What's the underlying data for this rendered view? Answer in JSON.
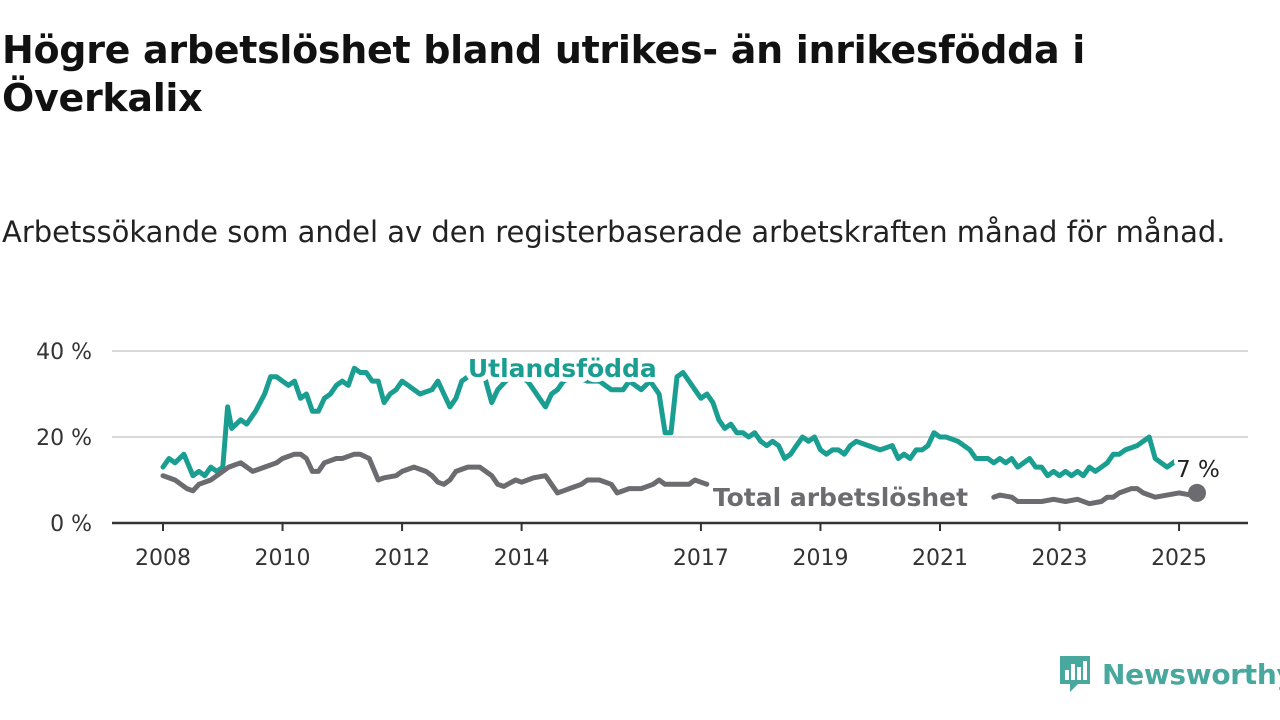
{
  "title": "Högre arbetslöshet bland utrikes- än inrikesfödda i Överkalix",
  "subtitle": "Arbetssökande som andel av den registerbaserade arbetskraften månad för månad.",
  "brand": {
    "name": "Newsworthy",
    "color": "#48a89e"
  },
  "chart_data": {
    "type": "line",
    "xlim": [
      2008,
      2025.9
    ],
    "ylim": [
      0,
      40
    ],
    "x_ticks": [
      {
        "value": 2008,
        "label": "2008"
      },
      {
        "value": 2010,
        "label": "2010"
      },
      {
        "value": 2012,
        "label": "2012"
      },
      {
        "value": 2014,
        "label": "2014"
      },
      {
        "value": 2017,
        "label": "2017"
      },
      {
        "value": 2019,
        "label": "2019"
      },
      {
        "value": 2021,
        "label": "2021"
      },
      {
        "value": 2023,
        "label": "2023"
      },
      {
        "value": 2025,
        "label": "2025"
      }
    ],
    "y_ticks": [
      {
        "value": 0,
        "label": "0 %"
      },
      {
        "value": 20,
        "label": "20 %"
      },
      {
        "value": 40,
        "label": "40 %"
      }
    ],
    "grid": true,
    "end_label": "7 %",
    "series": [
      {
        "name": "Utlandsfödda",
        "color": "#1a9e92",
        "points": [
          [
            2008.0,
            13
          ],
          [
            2008.1,
            15
          ],
          [
            2008.2,
            14
          ],
          [
            2008.35,
            16
          ],
          [
            2008.5,
            11
          ],
          [
            2008.6,
            12
          ],
          [
            2008.7,
            11
          ],
          [
            2008.8,
            13
          ],
          [
            2008.9,
            12
          ],
          [
            2009.0,
            13
          ],
          [
            2009.08,
            27
          ],
          [
            2009.15,
            22
          ],
          [
            2009.3,
            24
          ],
          [
            2009.4,
            23
          ],
          [
            2009.55,
            26
          ],
          [
            2009.7,
            30
          ],
          [
            2009.8,
            34
          ],
          [
            2009.9,
            34
          ],
          [
            2010.0,
            33
          ],
          [
            2010.1,
            32
          ],
          [
            2010.2,
            33
          ],
          [
            2010.3,
            29
          ],
          [
            2010.4,
            30
          ],
          [
            2010.5,
            26
          ],
          [
            2010.6,
            26
          ],
          [
            2010.7,
            29
          ],
          [
            2010.8,
            30
          ],
          [
            2010.9,
            32
          ],
          [
            2011.0,
            33
          ],
          [
            2011.1,
            32
          ],
          [
            2011.2,
            36
          ],
          [
            2011.3,
            35
          ],
          [
            2011.4,
            35
          ],
          [
            2011.5,
            33
          ],
          [
            2011.6,
            33
          ],
          [
            2011.7,
            28
          ],
          [
            2011.8,
            30
          ],
          [
            2011.9,
            31
          ],
          [
            2012.0,
            33
          ],
          [
            2012.1,
            32
          ],
          [
            2012.2,
            31
          ],
          [
            2012.3,
            30
          ],
          [
            2012.5,
            31
          ],
          [
            2012.6,
            33
          ],
          [
            2012.7,
            30
          ],
          [
            2012.8,
            27
          ],
          [
            2012.9,
            29
          ],
          [
            2013.0,
            33
          ],
          [
            2013.1,
            34
          ],
          [
            2013.3,
            36
          ],
          [
            2013.4,
            33
          ],
          [
            2013.5,
            28
          ],
          [
            2013.6,
            31
          ],
          [
            2013.8,
            34
          ],
          [
            2013.95,
            34
          ],
          [
            2014.1,
            33
          ],
          [
            2014.2,
            31
          ],
          [
            2014.3,
            29
          ],
          [
            2014.4,
            27
          ],
          [
            2014.5,
            30
          ],
          [
            2014.6,
            31
          ],
          [
            2014.7,
            33
          ],
          [
            2014.9,
            34
          ],
          [
            2015.1,
            33
          ],
          [
            2015.3,
            33
          ],
          [
            2015.5,
            31
          ],
          [
            2015.7,
            31
          ],
          [
            2015.8,
            33
          ],
          [
            2015.9,
            32
          ],
          [
            2016.0,
            31
          ],
          [
            2016.15,
            33
          ],
          [
            2016.3,
            30
          ],
          [
            2016.4,
            21
          ],
          [
            2016.5,
            21
          ],
          [
            2016.6,
            34
          ],
          [
            2016.7,
            35
          ],
          [
            2016.8,
            33
          ],
          [
            2016.9,
            31
          ],
          [
            2017.0,
            29
          ],
          [
            2017.1,
            30
          ],
          [
            2017.2,
            28
          ],
          [
            2017.3,
            24
          ],
          [
            2017.4,
            22
          ],
          [
            2017.5,
            23
          ],
          [
            2017.6,
            21
          ],
          [
            2017.7,
            21
          ],
          [
            2017.8,
            20
          ],
          [
            2017.9,
            21
          ],
          [
            2018.0,
            19
          ],
          [
            2018.1,
            18
          ],
          [
            2018.2,
            19
          ],
          [
            2018.3,
            18
          ],
          [
            2018.4,
            15
          ],
          [
            2018.5,
            16
          ],
          [
            2018.6,
            18
          ],
          [
            2018.7,
            20
          ],
          [
            2018.8,
            19
          ],
          [
            2018.9,
            20
          ],
          [
            2019.0,
            17
          ],
          [
            2019.1,
            16
          ],
          [
            2019.2,
            17
          ],
          [
            2019.3,
            17
          ],
          [
            2019.4,
            16
          ],
          [
            2019.5,
            18
          ],
          [
            2019.6,
            19
          ],
          [
            2019.8,
            18
          ],
          [
            2020.0,
            17
          ],
          [
            2020.2,
            18
          ],
          [
            2020.3,
            15
          ],
          [
            2020.4,
            16
          ],
          [
            2020.5,
            15
          ],
          [
            2020.6,
            17
          ],
          [
            2020.7,
            17
          ],
          [
            2020.8,
            18
          ],
          [
            2020.9,
            21
          ],
          [
            2021.0,
            20
          ],
          [
            2021.1,
            20
          ],
          [
            2021.3,
            19
          ],
          [
            2021.5,
            17
          ],
          [
            2021.6,
            15
          ],
          [
            2021.8,
            15
          ],
          [
            2021.9,
            14
          ],
          [
            2022.0,
            15
          ],
          [
            2022.1,
            14
          ],
          [
            2022.2,
            15
          ],
          [
            2022.3,
            13
          ],
          [
            2022.4,
            14
          ],
          [
            2022.5,
            15
          ],
          [
            2022.6,
            13
          ],
          [
            2022.7,
            13
          ],
          [
            2022.8,
            11
          ],
          [
            2022.9,
            12
          ],
          [
            2023.0,
            11
          ],
          [
            2023.1,
            12
          ],
          [
            2023.2,
            11
          ],
          [
            2023.3,
            12
          ],
          [
            2023.4,
            11
          ],
          [
            2023.5,
            13
          ],
          [
            2023.6,
            12
          ],
          [
            2023.7,
            13
          ],
          [
            2023.8,
            14
          ],
          [
            2023.9,
            16
          ],
          [
            2024.0,
            16
          ],
          [
            2024.1,
            17
          ],
          [
            2024.3,
            18
          ],
          [
            2024.4,
            19
          ],
          [
            2024.5,
            20
          ],
          [
            2024.6,
            15
          ],
          [
            2024.7,
            14
          ],
          [
            2024.8,
            13
          ],
          [
            2024.9,
            14
          ],
          [
            2025.0,
            15
          ]
        ]
      },
      {
        "name": "Total arbetslöshet",
        "color": "#6b6b70",
        "points": [
          [
            2008.0,
            11
          ],
          [
            2008.2,
            10
          ],
          [
            2008.4,
            8
          ],
          [
            2008.5,
            7.5
          ],
          [
            2008.6,
            9
          ],
          [
            2008.8,
            10
          ],
          [
            2009.0,
            12
          ],
          [
            2009.1,
            13
          ],
          [
            2009.3,
            14
          ],
          [
            2009.5,
            12
          ],
          [
            2009.7,
            13
          ],
          [
            2009.9,
            14
          ],
          [
            2010.0,
            15
          ],
          [
            2010.2,
            16
          ],
          [
            2010.3,
            16
          ],
          [
            2010.4,
            15
          ],
          [
            2010.5,
            12
          ],
          [
            2010.6,
            12
          ],
          [
            2010.7,
            14
          ],
          [
            2010.9,
            15
          ],
          [
            2011.0,
            15
          ],
          [
            2011.2,
            16
          ],
          [
            2011.3,
            16
          ],
          [
            2011.45,
            15
          ],
          [
            2011.6,
            10
          ],
          [
            2011.7,
            10.5
          ],
          [
            2011.9,
            11
          ],
          [
            2012.0,
            12
          ],
          [
            2012.2,
            13
          ],
          [
            2012.4,
            12
          ],
          [
            2012.5,
            11
          ],
          [
            2012.6,
            9.5
          ],
          [
            2012.7,
            9
          ],
          [
            2012.8,
            10
          ],
          [
            2012.9,
            12
          ],
          [
            2013.1,
            13
          ],
          [
            2013.3,
            13
          ],
          [
            2013.5,
            11
          ],
          [
            2013.6,
            9
          ],
          [
            2013.7,
            8.5
          ],
          [
            2013.9,
            10
          ],
          [
            2014.0,
            9.5
          ],
          [
            2014.1,
            10
          ],
          [
            2014.2,
            10.5
          ],
          [
            2014.4,
            11
          ],
          [
            2014.5,
            9
          ],
          [
            2014.6,
            7
          ],
          [
            2014.7,
            7.5
          ],
          [
            2014.8,
            8
          ],
          [
            2015.0,
            9
          ],
          [
            2015.1,
            10
          ],
          [
            2015.3,
            10
          ],
          [
            2015.5,
            9
          ],
          [
            2015.6,
            7
          ],
          [
            2015.8,
            8
          ],
          [
            2016.0,
            8
          ],
          [
            2016.2,
            9
          ],
          [
            2016.3,
            10
          ],
          [
            2016.4,
            9
          ],
          [
            2016.6,
            9
          ],
          [
            2016.8,
            9
          ],
          [
            2016.9,
            10
          ],
          [
            2017.0,
            9.5
          ],
          [
            2017.1,
            9
          ]
        ]
      },
      {
        "name": "",
        "color": "#6b6b70",
        "points": [
          [
            2021.9,
            6
          ],
          [
            2022.0,
            6.5
          ],
          [
            2022.2,
            6
          ],
          [
            2022.3,
            5
          ],
          [
            2022.5,
            5
          ],
          [
            2022.7,
            5
          ],
          [
            2022.9,
            5.5
          ],
          [
            2023.1,
            5
          ],
          [
            2023.3,
            5.5
          ],
          [
            2023.5,
            4.5
          ],
          [
            2023.7,
            5
          ],
          [
            2023.8,
            6
          ],
          [
            2023.9,
            6
          ],
          [
            2024.0,
            7
          ],
          [
            2024.2,
            8
          ],
          [
            2024.3,
            8
          ],
          [
            2024.4,
            7
          ],
          [
            2024.6,
            6
          ],
          [
            2024.8,
            6.5
          ],
          [
            2025.0,
            7
          ],
          [
            2025.2,
            6.5
          ],
          [
            2025.3,
            7
          ]
        ]
      }
    ],
    "series_labels": [
      {
        "text": "Utlandsfödda",
        "color": "#1a9e92",
        "x": 2013.1,
        "y": 36
      },
      {
        "text": "Total arbetslöshet",
        "color": "#6b6b70",
        "x": 2017.2,
        "y": 6
      }
    ],
    "end_point": {
      "x": 2025.3,
      "y": 7,
      "color": "#6b6b70"
    }
  }
}
